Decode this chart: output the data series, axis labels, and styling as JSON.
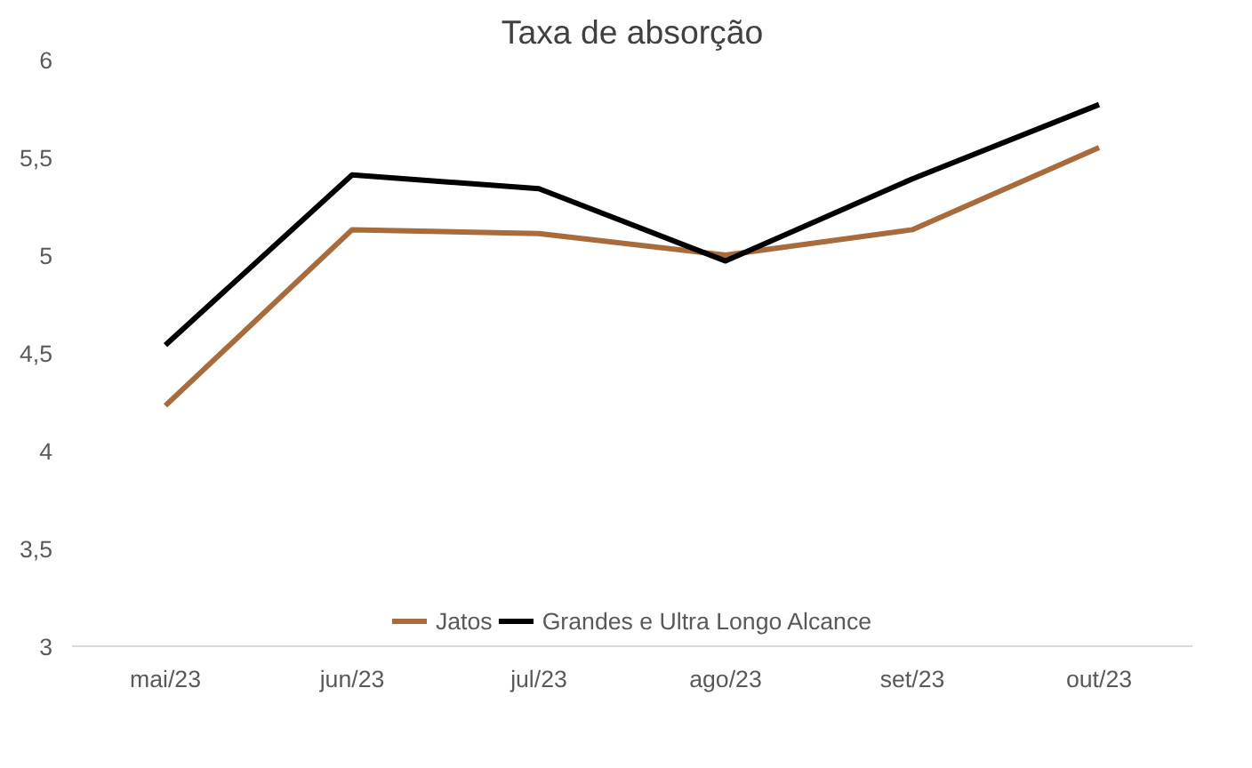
{
  "chart_data": {
    "type": "line",
    "title": "Taxa de absorção",
    "categories": [
      "mai/23",
      "jun/23",
      "jul/23",
      "ago/23",
      "set/23",
      "out/23"
    ],
    "series": [
      {
        "name": "Jatos",
        "color": "#a86b3c",
        "values": [
          4.23,
          5.13,
          5.11,
          5.0,
          5.13,
          5.55
        ]
      },
      {
        "name": "Grandes e Ultra Longo Alcance",
        "color": "#000000",
        "values": [
          4.54,
          5.41,
          5.34,
          4.97,
          5.39,
          5.77
        ]
      }
    ],
    "ylim": [
      3,
      6
    ],
    "yticks": [
      3,
      {
        "value": 3.5,
        "label": "3,5"
      },
      4,
      {
        "value": 4.5,
        "label": "4,5"
      },
      5,
      {
        "value": 5.5,
        "label": "5,5"
      },
      6
    ],
    "grid": false,
    "legend": "bottom",
    "marker": "none",
    "line_style": "solid"
  }
}
